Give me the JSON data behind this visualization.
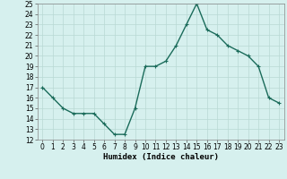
{
  "x": [
    0,
    1,
    2,
    3,
    4,
    5,
    6,
    7,
    8,
    9,
    10,
    11,
    12,
    13,
    14,
    15,
    16,
    17,
    18,
    19,
    20,
    21,
    22,
    23
  ],
  "y": [
    17,
    16,
    15,
    14.5,
    14.5,
    14.5,
    13.5,
    12.5,
    12.5,
    15,
    19,
    19,
    19.5,
    21,
    23,
    25,
    22.5,
    22,
    21,
    20.5,
    20,
    19,
    16,
    15.5
  ],
  "line_color": "#1a6b5a",
  "marker": "+",
  "marker_size": 3,
  "background_color": "#d6f0ee",
  "grid_color": "#b8d8d4",
  "xlabel": "Humidex (Indice chaleur)",
  "ylim": [
    12,
    25
  ],
  "xlim": [
    -0.5,
    23.5
  ],
  "yticks": [
    12,
    13,
    14,
    15,
    16,
    17,
    18,
    19,
    20,
    21,
    22,
    23,
    24,
    25
  ],
  "xticks": [
    0,
    1,
    2,
    3,
    4,
    5,
    6,
    7,
    8,
    9,
    10,
    11,
    12,
    13,
    14,
    15,
    16,
    17,
    18,
    19,
    20,
    21,
    22,
    23
  ],
  "tick_fontsize": 5.5,
  "xlabel_fontsize": 6.5,
  "line_width": 1.0
}
